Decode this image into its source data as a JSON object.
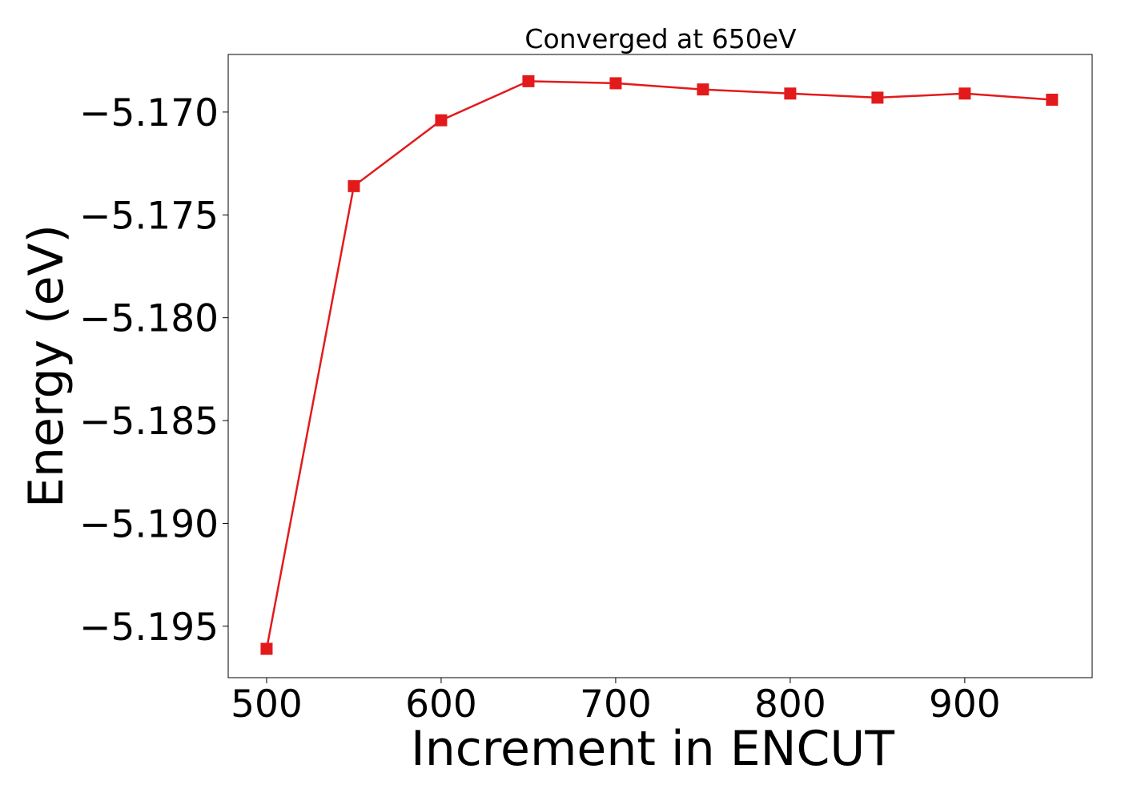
{
  "chart_data": {
    "type": "line",
    "title": "Converged at 650eV",
    "xlabel": "Increment in ENCUT",
    "ylabel": "Energy (eV)",
    "x": [
      500,
      550,
      600,
      650,
      700,
      750,
      800,
      850,
      900,
      950
    ],
    "series": [
      {
        "values": [
          -5.1961,
          -5.1736,
          -5.1704,
          -5.1685,
          -5.1686,
          -5.1689,
          -5.1691,
          -5.1693,
          -5.1691,
          -5.1694
        ],
        "color": "#e31a1c",
        "marker": "square"
      }
    ],
    "xlim": [
      478,
      973
    ],
    "ylim": [
      -5.1975,
      -5.1672
    ],
    "xticks": [
      500,
      600,
      700,
      800,
      900
    ],
    "xtick_labels": [
      "500",
      "600",
      "700",
      "800",
      "900"
    ],
    "yticks": [
      -5.17,
      -5.175,
      -5.18,
      -5.185,
      -5.19,
      -5.195
    ],
    "ytick_labels": [
      "−5.170",
      "−5.175",
      "−5.180",
      "−5.185",
      "−5.190",
      "−5.195"
    ],
    "grid": false,
    "legend": "none"
  }
}
